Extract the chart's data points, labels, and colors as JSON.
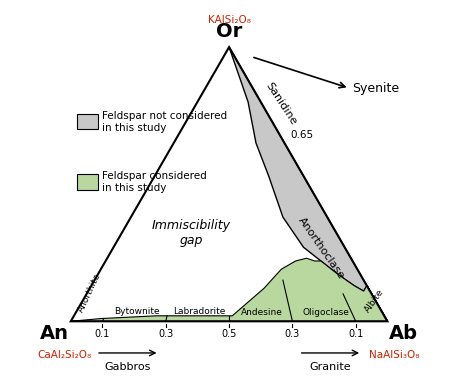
{
  "gray_color": "#c8c8c8",
  "green_color": "#b8d8a0",
  "triangle_edge_color": "#000000",
  "text_red_color": "#cc2200",
  "background_color": "#ffffff",
  "feldspar_names": [
    "Anorthite",
    "Bytownite",
    "Labradorite",
    "Andesine",
    "Oligoclase",
    "Albite"
  ],
  "gabbros_label": "Gabbros",
  "granite_label": "Granite",
  "immiscibility_label": "Immiscibility\ngap",
  "sanidine_label": "Sanidine",
  "anorthoclase_label": "Anorthoclase",
  "syenite_label": "Syenite",
  "legend_gray": "Feldspar not considered\nin this study",
  "legend_green": "Feldspar considered\nin this study",
  "Or_label": "Or",
  "An_label": "An",
  "Ab_label": "Ab",
  "Or_chem": "KAlSi₂O₈",
  "An_chem": "CaAl₂Si₂O₈",
  "Ab_chem": "NaAlSi₃O₈",
  "tick_labels_from_An": [
    "0.1",
    "0.3",
    "0.5"
  ],
  "tick_labels_from_Ab": [
    "0.3",
    "0.1"
  ],
  "label_065": "0.65"
}
